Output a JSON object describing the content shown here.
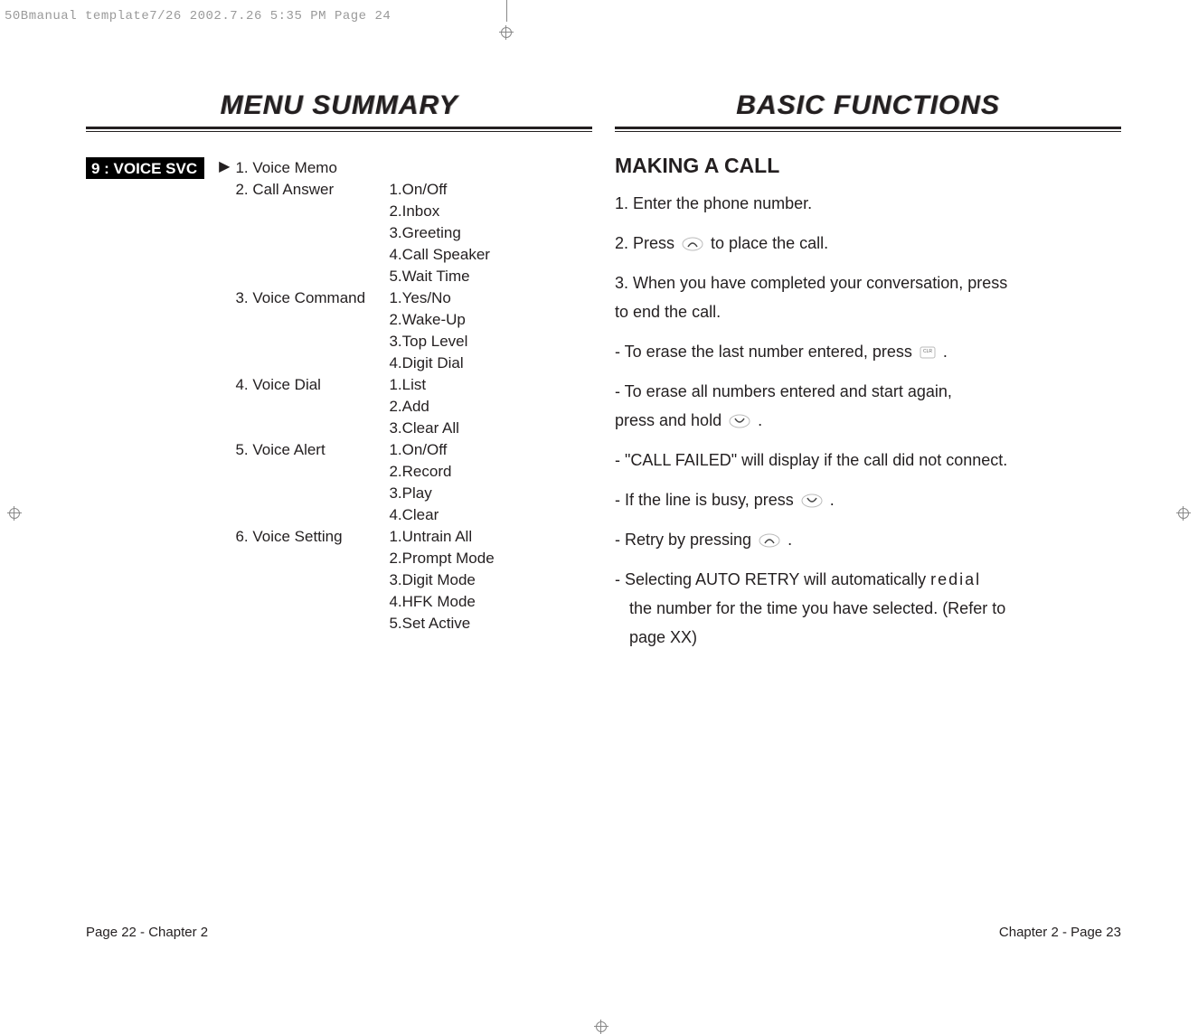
{
  "header_text": "50Bmanual template7/26  2002.7.26  5:35 PM  Page 24",
  "left": {
    "title": "MENU SUMMARY",
    "section_label": "9 : VOICE SVC",
    "menu": {
      "left_col": [
        "1. Voice Memo",
        "2. Call Answer",
        "",
        "",
        "",
        "",
        "3. Voice Command",
        "",
        "",
        "",
        "4. Voice Dial",
        "",
        "",
        "5. Voice Alert",
        "",
        "",
        "",
        "6. Voice Setting",
        "",
        "",
        "",
        ""
      ],
      "right_col": [
        "",
        "1.On/Off",
        "2.Inbox",
        "3.Greeting",
        "4.Call Speaker",
        "5.Wait Time",
        "1.Yes/No",
        "2.Wake-Up",
        "3.Top Level",
        "4.Digit Dial",
        "1.List",
        "2.Add",
        "3.Clear  All",
        "1.On/Off",
        "2.Record",
        "3.Play",
        "4.Clear",
        "1.Untrain All",
        "2.Prompt Mode",
        "3.Digit Mode",
        "4.HFK Mode",
        "5.Set Active"
      ]
    },
    "footer": "Page 22 - Chapter 2"
  },
  "right": {
    "title": "BASIC FUNCTIONS",
    "heading": "MAKING A CALL",
    "lines": {
      "l1": "1. Enter the phone number.",
      "l2a": "2. Press ",
      "l2b": " to place the call.",
      "l3a": "3. When you have completed your conversation, press",
      "l3b": "to end the call.",
      "l4a": "- To erase the last number entered, press  ",
      "l4b": " .",
      "l5a": "- To erase all numbers entered and start again,",
      "l5b": "press and hold ",
      "l5c": " .",
      "l6": "- \"CALL FAILED\" will display if the call did not connect.",
      "l7a": "- If the line is busy, press ",
      "l7b": " .",
      "l8a": "- Retry by pressing ",
      "l8b": " .",
      "l9a": "- Selecting AUTO RETRY will automatically ",
      "l9a2": "redial",
      "l9b": "the number for the time you have selected. (Refer to",
      "l9c": "page XX)"
    },
    "footer": "Chapter 2 - Page 23"
  }
}
